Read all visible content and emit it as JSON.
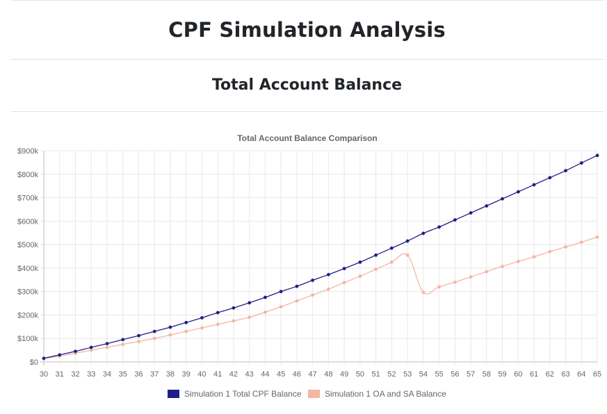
{
  "page": {
    "title": "CPF Simulation Analysis",
    "subtitle": "Total Account Balance"
  },
  "chart_data": {
    "type": "line",
    "title": "Total Account Balance Comparison",
    "xlabel": "",
    "ylabel": "",
    "ylim": [
      0,
      900000
    ],
    "yticks": [
      0,
      100000,
      200000,
      300000,
      400000,
      500000,
      600000,
      700000,
      800000,
      900000
    ],
    "ytick_labels": [
      "$0",
      "$100k",
      "$200k",
      "$300k",
      "$400k",
      "$500k",
      "$600k",
      "$700k",
      "$800k",
      "$900k"
    ],
    "x": [
      30,
      31,
      32,
      33,
      34,
      35,
      36,
      37,
      38,
      39,
      40,
      41,
      42,
      43,
      44,
      45,
      46,
      47,
      48,
      49,
      50,
      51,
      52,
      53,
      54,
      55,
      56,
      57,
      58,
      59,
      60,
      61,
      62,
      63,
      64,
      65
    ],
    "grid": true,
    "legend_position": "bottom",
    "series": [
      {
        "name": "Simulation 1 Total CPF Balance",
        "color": "#1f1f86",
        "values": [
          15000,
          30000,
          45000,
          62000,
          78000,
          95000,
          112000,
          130000,
          148000,
          168000,
          188000,
          210000,
          230000,
          252000,
          275000,
          300000,
          322000,
          348000,
          372000,
          398000,
          425000,
          455000,
          485000,
          515000,
          548000,
          575000,
          605000,
          635000,
          665000,
          695000,
          725000,
          755000,
          785000,
          815000,
          848000,
          880000
        ]
      },
      {
        "name": "Simulation 1 OA and SA Balance",
        "color": "#f4b6a4",
        "values": [
          15000,
          25000,
          37000,
          50000,
          62000,
          75000,
          87000,
          100000,
          115000,
          130000,
          145000,
          160000,
          175000,
          190000,
          212000,
          235000,
          260000,
          285000,
          310000,
          338000,
          365000,
          395000,
          425000,
          455000,
          297000,
          320000,
          340000,
          362000,
          385000,
          407000,
          428000,
          448000,
          470000,
          490000,
          510000,
          532000
        ]
      }
    ]
  }
}
